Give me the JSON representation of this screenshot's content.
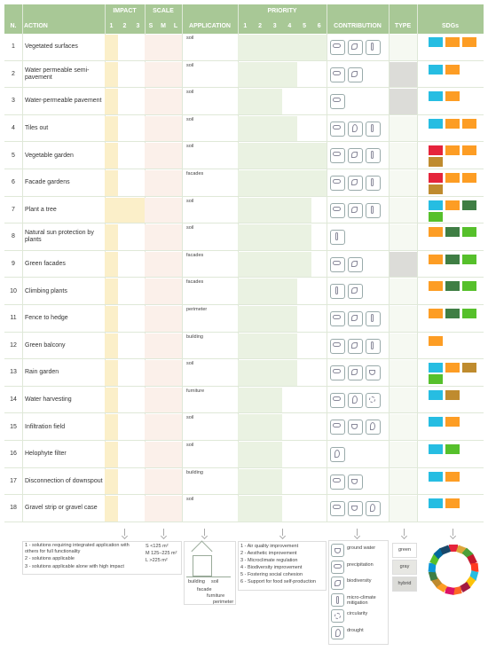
{
  "header": {
    "group_impact": "IMPACT",
    "group_scale": "SCALE",
    "group_priority": "PRIORITY",
    "n": "N.",
    "action": "ACTION",
    "impact_cols": [
      "1",
      "2",
      "3"
    ],
    "scale_cols": [
      "S",
      "M",
      "L"
    ],
    "application": "APPLICATION",
    "priority_cols": [
      "1",
      "2",
      "3",
      "4",
      "5",
      "6"
    ],
    "contribution": "CONTRIBUTION",
    "type": "TYPE",
    "sdgs": "SDGs"
  },
  "rows": [
    {
      "n": "1",
      "action": "Vegetated surfaces",
      "application": "soil",
      "impact": 1,
      "scale": [
        1,
        2,
        3
      ],
      "priority": [
        1,
        2,
        3,
        4,
        5,
        6
      ],
      "contribution": [
        1,
        2,
        3
      ],
      "type": "green",
      "sdgs": [
        "#26bde2",
        "#fd9d24",
        "#fd9d24"
      ]
    },
    {
      "n": "2",
      "action": "Water permeable semi-pavement",
      "application": "soil",
      "impact": 1,
      "scale": [
        1,
        2,
        3
      ],
      "priority": [
        1,
        2,
        3,
        4
      ],
      "contribution": [
        1,
        2
      ],
      "type": "gray",
      "sdgs": [
        "#26bde2",
        "#fd9d24"
      ]
    },
    {
      "n": "3",
      "action": "Water-permeable pavement",
      "application": "soil",
      "impact": 1,
      "scale": [
        1,
        2,
        3
      ],
      "priority": [
        1,
        2,
        3
      ],
      "contribution": [
        1
      ],
      "type": "gray",
      "sdgs": [
        "#26bde2",
        "#fd9d24"
      ]
    },
    {
      "n": "4",
      "action": "Tiles out",
      "application": "soil",
      "impact": 1,
      "scale": [
        1,
        2,
        3
      ],
      "priority": [
        1,
        2,
        3,
        4
      ],
      "contribution": [
        1,
        5,
        3
      ],
      "type": "green",
      "sdgs": [
        "#26bde2",
        "#fd9d24",
        "#fd9d24"
      ]
    },
    {
      "n": "5",
      "action": "Vegetable garden",
      "application": "soil",
      "impact": 1,
      "scale": [
        1,
        2,
        3
      ],
      "priority": [
        1,
        2,
        3,
        4,
        5,
        6
      ],
      "contribution": [
        1,
        2,
        3
      ],
      "type": "green",
      "sdgs": [
        "#e5243b",
        "#fd9d24",
        "#fd9d24",
        "#bf8b2e"
      ]
    },
    {
      "n": "6",
      "action": "Facade gardens",
      "application": "facades",
      "impact": 1,
      "scale": [
        1,
        2,
        3
      ],
      "priority": [
        1,
        2,
        3,
        4,
        5,
        6
      ],
      "contribution": [
        1,
        2,
        3
      ],
      "type": "green",
      "sdgs": [
        "#e5243b",
        "#fd9d24",
        "#fd9d24",
        "#bf8b2e"
      ]
    },
    {
      "n": "7",
      "action": "Plant a tree",
      "application": "soil",
      "impact": 3,
      "scale": [
        1,
        2,
        3
      ],
      "priority": [
        1,
        2,
        3,
        4,
        5
      ],
      "contribution": [
        1,
        2,
        3
      ],
      "type": "green",
      "sdgs": [
        "#26bde2",
        "#fd9d24",
        "#3f7e44",
        "#56c02b"
      ]
    },
    {
      "n": "8",
      "action": "Natural sun protection by plants",
      "application": "soil",
      "impact": 1,
      "scale": [
        1,
        2,
        3
      ],
      "priority": [
        1,
        2,
        3,
        4,
        5
      ],
      "contribution": [
        3
      ],
      "type": "green",
      "sdgs": [
        "#fd9d24",
        "#3f7e44",
        "#56c02b"
      ]
    },
    {
      "n": "9",
      "action": "Green facades",
      "application": "facades",
      "impact": 1,
      "scale": [
        1,
        2,
        3
      ],
      "priority": [
        1,
        2,
        3,
        4,
        5
      ],
      "contribution": [
        1,
        2
      ],
      "type": "gray",
      "sdgs": [
        "#fd9d24",
        "#3f7e44",
        "#56c02b"
      ]
    },
    {
      "n": "10",
      "action": "Climbing plants",
      "application": "facades",
      "impact": 1,
      "scale": [
        1,
        2,
        3
      ],
      "priority": [
        1,
        2,
        3,
        4
      ],
      "contribution": [
        3,
        2
      ],
      "type": "green",
      "sdgs": [
        "#fd9d24",
        "#3f7e44",
        "#56c02b"
      ]
    },
    {
      "n": "11",
      "action": "Fence to hedge",
      "application": "perimeter",
      "impact": 1,
      "scale": [
        1,
        2,
        3
      ],
      "priority": [
        1,
        2,
        3,
        4
      ],
      "contribution": [
        1,
        2,
        3
      ],
      "type": "green",
      "sdgs": [
        "#fd9d24",
        "#3f7e44",
        "#56c02b"
      ]
    },
    {
      "n": "12",
      "action": "Green balcony",
      "application": "building",
      "impact": 1,
      "scale": [
        1,
        2,
        3
      ],
      "priority": [
        1,
        2,
        3,
        4
      ],
      "contribution": [
        1,
        2,
        3
      ],
      "type": "green",
      "sdgs": [
        "#fd9d24"
      ]
    },
    {
      "n": "13",
      "action": "Rain garden",
      "application": "soil",
      "impact": 1,
      "scale": [
        1,
        2,
        3
      ],
      "priority": [
        1,
        2,
        3,
        4
      ],
      "contribution": [
        1,
        2,
        0
      ],
      "type": "green",
      "sdgs": [
        "#26bde2",
        "#fd9d24",
        "#bf8b2e",
        "#56c02b"
      ]
    },
    {
      "n": "14",
      "action": "Water harvesting",
      "application": "furniture",
      "impact": 1,
      "scale": [
        1,
        2,
        3
      ],
      "priority": [
        1,
        2,
        3
      ],
      "contribution": [
        1,
        5,
        4
      ],
      "type": "green",
      "sdgs": [
        "#26bde2",
        "#bf8b2e"
      ]
    },
    {
      "n": "15",
      "action": "Infiltration field",
      "application": "soil",
      "impact": 1,
      "scale": [
        1,
        2,
        3
      ],
      "priority": [
        1,
        2,
        3
      ],
      "contribution": [
        1,
        0,
        5
      ],
      "type": "green",
      "sdgs": [
        "#26bde2",
        "#fd9d24"
      ]
    },
    {
      "n": "16",
      "action": "Helophyte filter",
      "application": "soil",
      "impact": 1,
      "scale": [
        1,
        2,
        3
      ],
      "priority": [
        1,
        2,
        3
      ],
      "contribution": [
        5
      ],
      "type": "green",
      "sdgs": [
        "#26bde2",
        "#56c02b"
      ]
    },
    {
      "n": "17",
      "action": "Disconnection of downspout",
      "application": "building",
      "impact": 1,
      "scale": [
        1,
        2,
        3
      ],
      "priority": [
        1,
        2,
        3
      ],
      "contribution": [
        1,
        0
      ],
      "type": "green",
      "sdgs": [
        "#26bde2",
        "#fd9d24"
      ]
    },
    {
      "n": "18",
      "action": "Gravel strip or gravel case",
      "application": "soil",
      "impact": 1,
      "scale": [
        1,
        2,
        3
      ],
      "priority": [
        1,
        2,
        3
      ],
      "contribution": [
        1,
        0,
        5
      ],
      "type": "green",
      "sdgs": [
        "#26bde2",
        "#fd9d24"
      ]
    }
  ],
  "legend": {
    "impact": [
      "1 - solutions requiring integrated application with others for full functionality",
      "2 - solutions applicable",
      "3 - solutions applicable alone with high impact"
    ],
    "scale": [
      "S <125 m²",
      "M 125–225 m²",
      "L >225 m²"
    ],
    "application": [
      "building",
      "soil",
      "facade",
      "furniture",
      "perimeter"
    ],
    "priority": [
      "1 - Air quality improvement",
      "2 - Aesthetic improvement",
      "3 - Microclimate regulation",
      "4 - Biodiversity improvement",
      "5 - Fostering social cohesion",
      "6 - Support for food self-production"
    ],
    "contribution": [
      "ground water",
      "precipitation",
      "biodiversity",
      "micro-climate mitigation",
      "circularity",
      "drought"
    ],
    "type": [
      "green",
      "gray",
      "hybrid"
    ]
  }
}
